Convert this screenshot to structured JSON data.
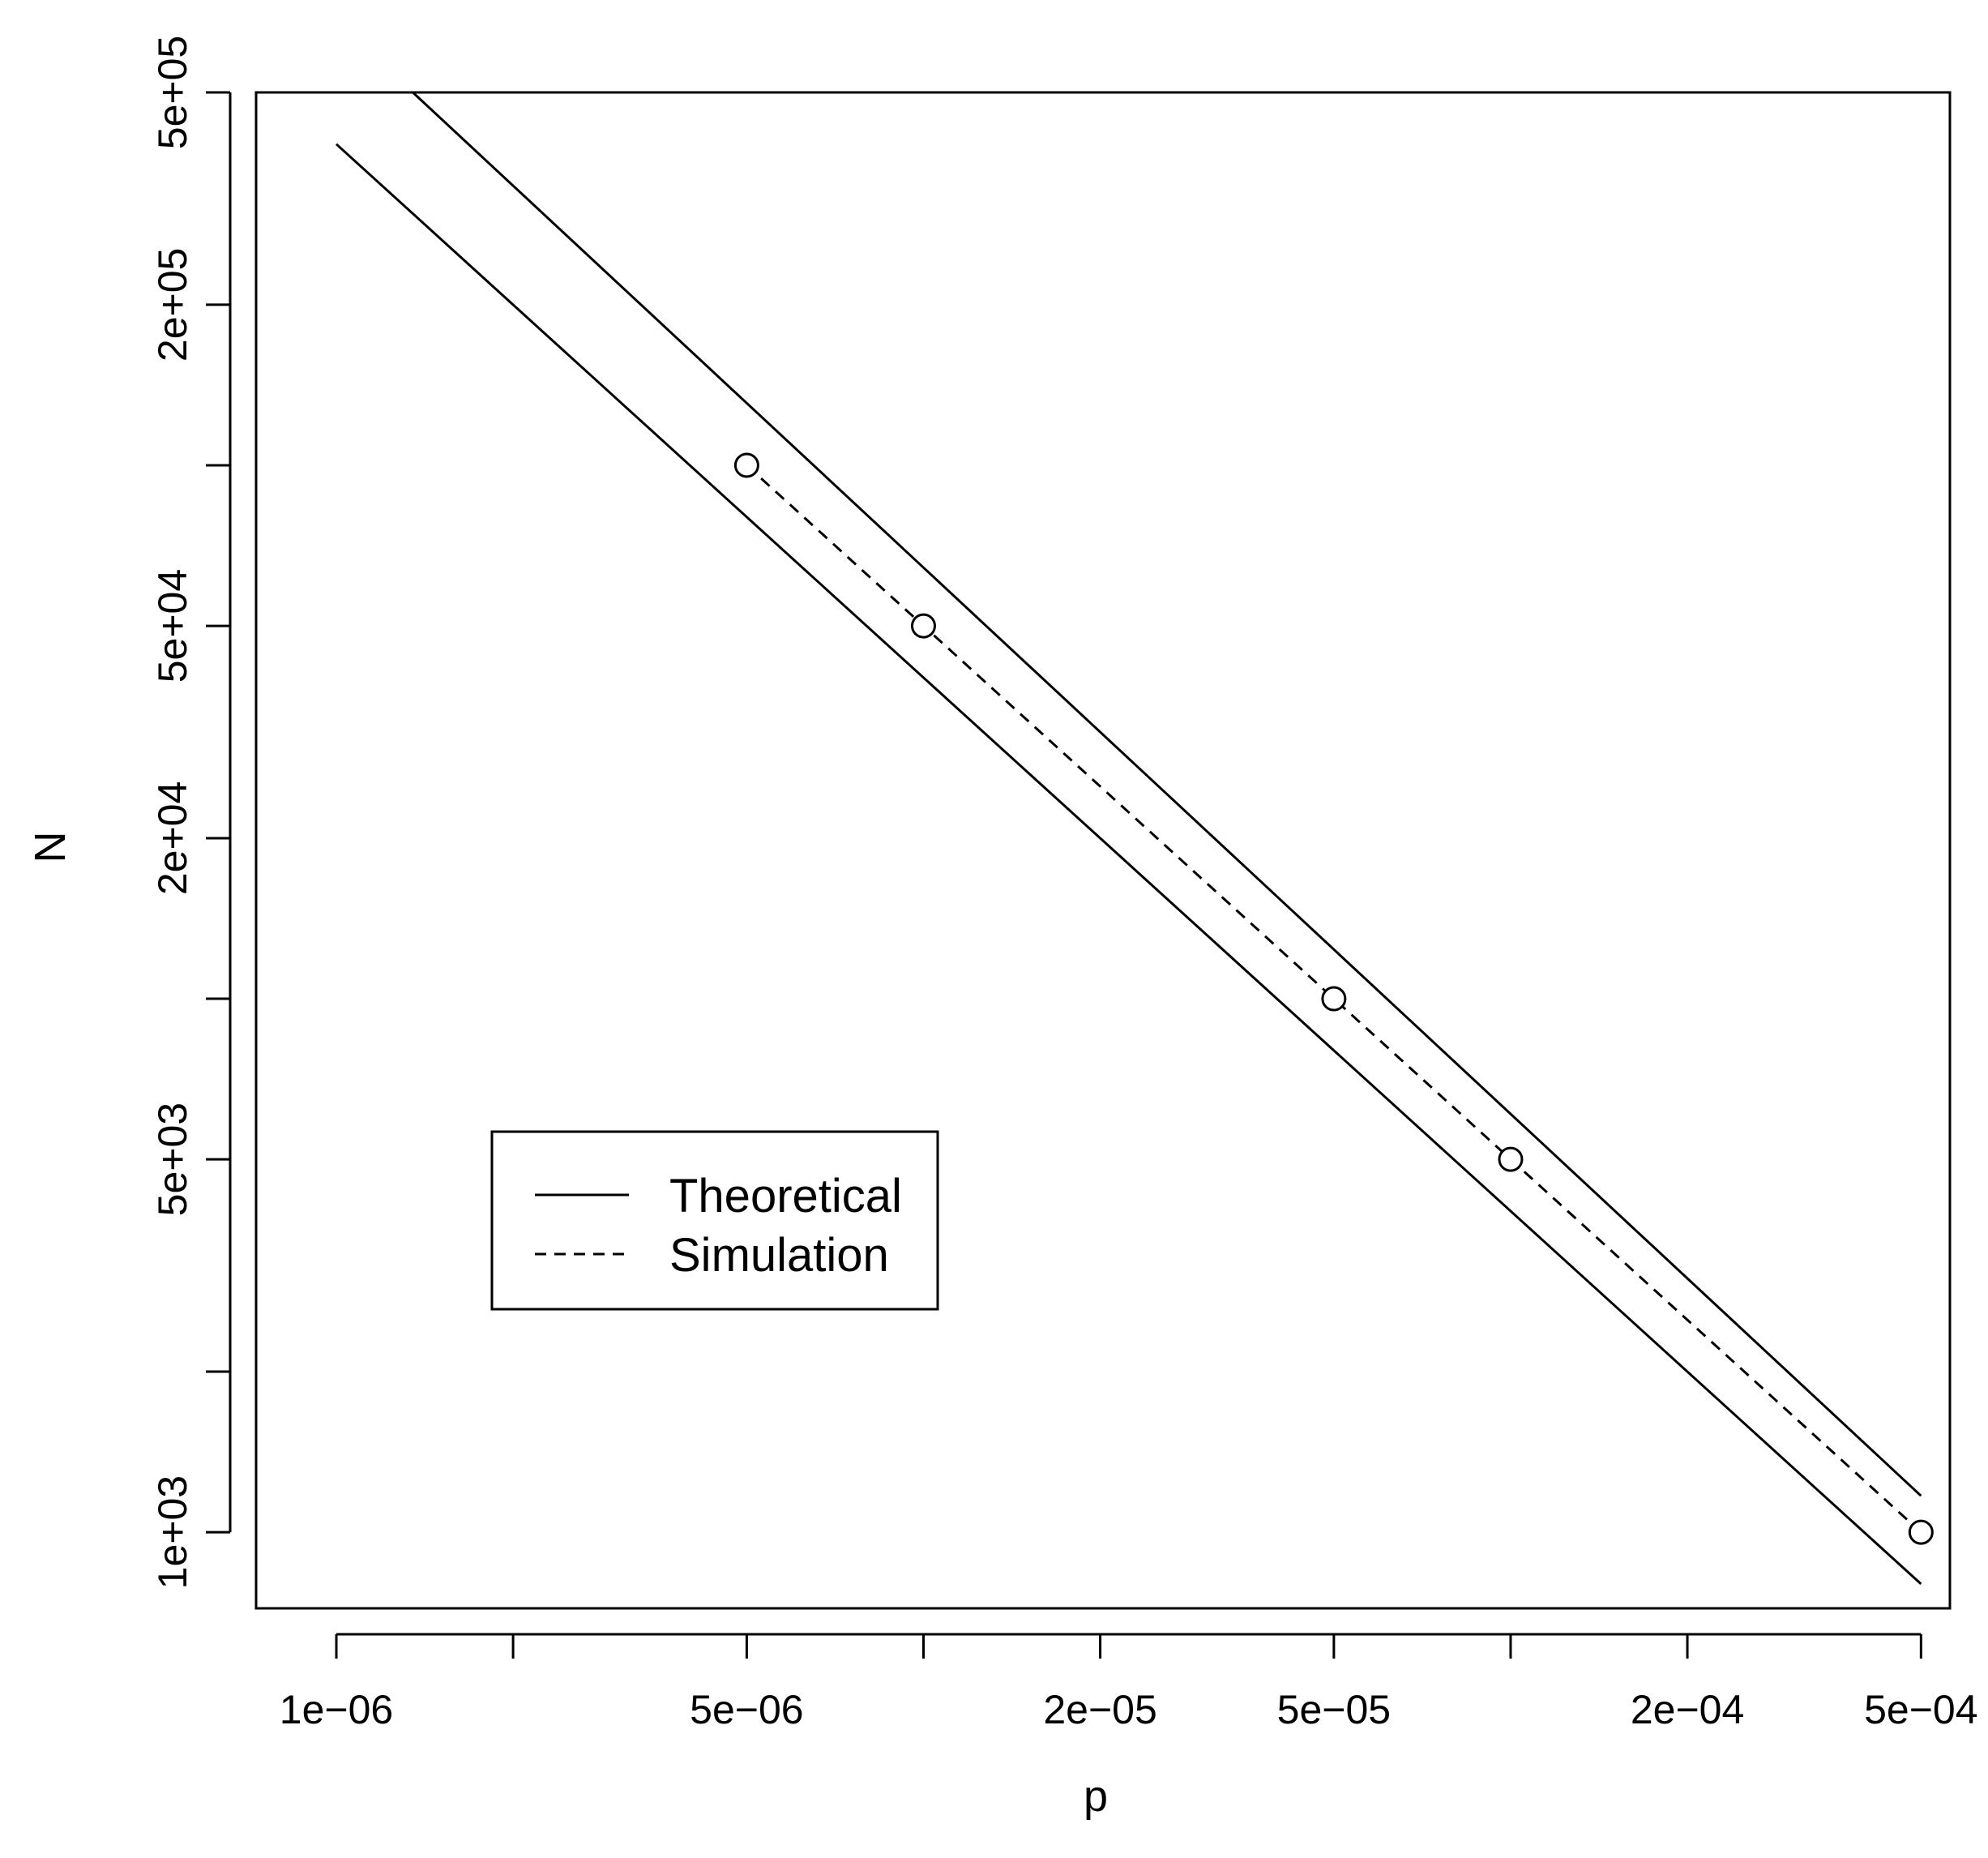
{
  "chart_data": {
    "type": "line",
    "xlabel": "p",
    "ylabel": "N",
    "x_scale": "log",
    "y_scale": "log",
    "xlim": [
      7.3e-07,
      0.00056
    ],
    "ylim": [
      720,
      500000
    ],
    "grid": false,
    "x_ticks": [
      {
        "value": 1e-06,
        "label": "1e−06"
      },
      {
        "value": 2e-06,
        "label": ""
      },
      {
        "value": 5e-06,
        "label": "5e−06"
      },
      {
        "value": 1e-05,
        "label": ""
      },
      {
        "value": 2e-05,
        "label": "2e−05"
      },
      {
        "value": 5e-05,
        "label": "5e−05"
      },
      {
        "value": 0.0001,
        "label": ""
      },
      {
        "value": 0.0002,
        "label": "2e−04"
      },
      {
        "value": 0.0005,
        "label": "5e−04"
      }
    ],
    "y_ticks": [
      {
        "value": 1000,
        "label": "1e+03"
      },
      {
        "value": 2000,
        "label": ""
      },
      {
        "value": 5000,
        "label": "5e+03"
      },
      {
        "value": 10000,
        "label": ""
      },
      {
        "value": 20000,
        "label": "2e+04"
      },
      {
        "value": 50000,
        "label": "5e+04"
      },
      {
        "value": 100000,
        "label": ""
      },
      {
        "value": 200000,
        "label": "2e+05"
      },
      {
        "value": 500000,
        "label": "5e+05"
      }
    ],
    "series": [
      {
        "name": "Theoretical",
        "style": "solid",
        "markers": false,
        "x": [
          1e-06,
          0.0005
        ],
        "y": [
          400000,
          800
        ]
      },
      {
        "name": "Theoretical",
        "style": "solid",
        "markers": false,
        "x": [
          1.35e-06,
          0.0005
        ],
        "y": [
          500000,
          1170
        ]
      },
      {
        "name": "Simulation",
        "style": "dashed",
        "markers": true,
        "x": [
          5e-06,
          1e-05,
          5e-05,
          0.0001,
          0.0005
        ],
        "y": [
          100000,
          50000,
          10000,
          5000,
          1000
        ]
      }
    ],
    "legend": {
      "position": "bottom-left",
      "entries": [
        {
          "label": "Theoretical",
          "style": "solid"
        },
        {
          "label": "Simulation",
          "style": "dashed"
        }
      ]
    }
  }
}
